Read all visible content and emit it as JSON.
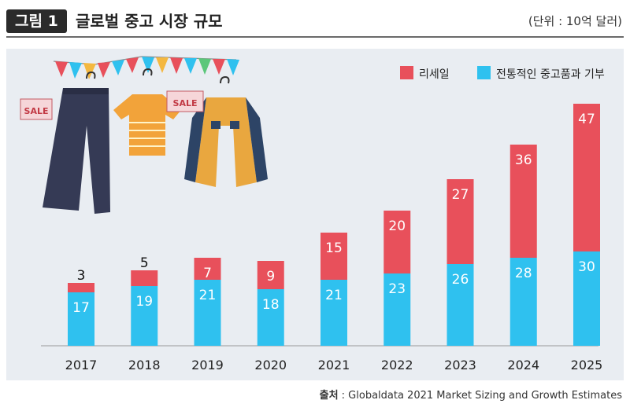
{
  "header": {
    "figure_label": "그림 1",
    "title": "글로벌 중고 시장 규모",
    "unit": "(단위 : 10억 달러)"
  },
  "source": {
    "label": "출처",
    "text": " : Globaldata 2021 Market Sizing and Growth Estimates"
  },
  "illustration": {
    "sale_tag_left": "SALE",
    "sale_tag_right": "SALE"
  },
  "colors": {
    "resale": "#e8505b",
    "traditional": "#2fc1ef",
    "panel": "#e9edf2"
  },
  "chart_data": {
    "type": "bar",
    "stacked": true,
    "categories": [
      "2017",
      "2018",
      "2019",
      "2020",
      "2021",
      "2022",
      "2023",
      "2024",
      "2025"
    ],
    "series": [
      {
        "name": "전통적인 중고품과 기부",
        "values": [
          17,
          19,
          21,
          18,
          21,
          23,
          26,
          28,
          30
        ]
      },
      {
        "name": "리세일",
        "values": [
          3,
          5,
          7,
          9,
          15,
          20,
          27,
          36,
          47
        ]
      }
    ],
    "ylim": [
      0,
      80
    ],
    "grid": false,
    "legend": "top-right"
  }
}
